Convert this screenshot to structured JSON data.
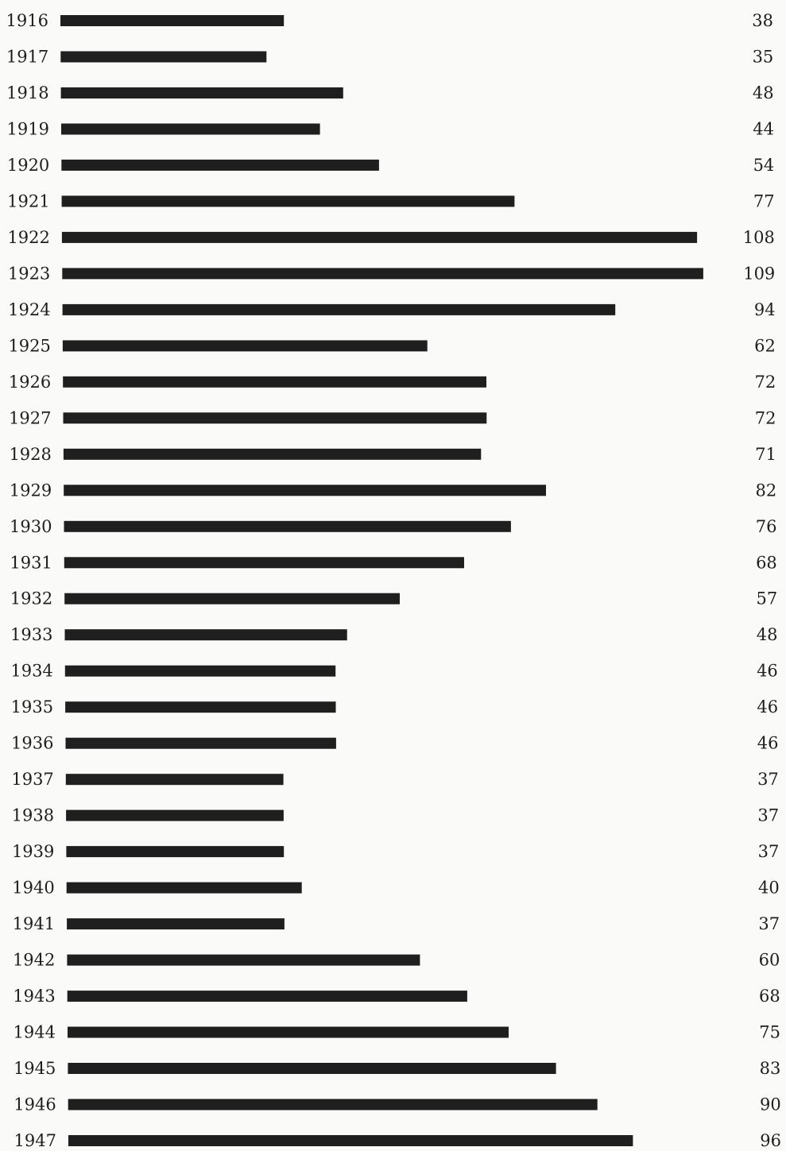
{
  "colors": {
    "background": "#fafaf8",
    "bar": "#1f1f1f",
    "text": "#1e1e1e"
  },
  "chart_data": {
    "type": "bar",
    "orientation": "horizontal",
    "title": "",
    "xlabel": "",
    "ylabel": "",
    "xlim": [
      0,
      109
    ],
    "grid": false,
    "legend": false,
    "categories": [
      "1916",
      "1917",
      "1918",
      "1919",
      "1920",
      "1921",
      "1922",
      "1923",
      "1924",
      "1925",
      "1926",
      "1927",
      "1928",
      "1929",
      "1930",
      "1931",
      "1932",
      "1933",
      "1934",
      "1935",
      "1936",
      "1937",
      "1938",
      "1939",
      "1940",
      "1941",
      "1942",
      "1943",
      "1944",
      "1945",
      "1946",
      "1947"
    ],
    "values": [
      38,
      35,
      48,
      44,
      54,
      77,
      108,
      109,
      94,
      62,
      72,
      72,
      71,
      82,
      76,
      68,
      57,
      48,
      46,
      46,
      46,
      37,
      37,
      37,
      40,
      37,
      60,
      68,
      75,
      83,
      90,
      96
    ],
    "value_labels": [
      "38",
      "35",
      "48",
      "44",
      "54",
      "77",
      "108",
      "109",
      "94",
      "62",
      "72",
      "72",
      "71",
      "82",
      "76",
      "68",
      "57",
      "48",
      "46",
      "46",
      "46",
      "37",
      "37",
      "37",
      "40",
      "37",
      "60",
      "68",
      "75",
      "83",
      "90",
      "96"
    ]
  }
}
